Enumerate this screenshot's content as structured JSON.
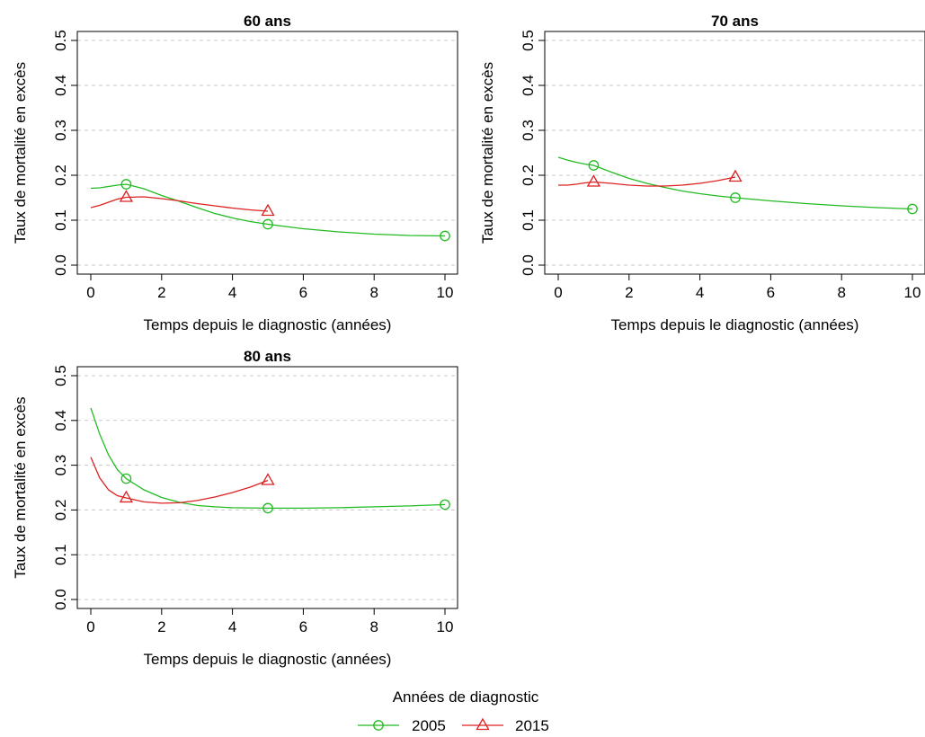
{
  "chart_data": [
    {
      "type": "line",
      "title": "60 ans",
      "xlabel": "Temps depuis le diagnostic (années)",
      "ylabel": "Taux de mortalité en excès",
      "xlim": [
        0,
        10
      ],
      "ylim": [
        0,
        0.5
      ],
      "xticks": [
        0,
        2,
        4,
        6,
        8,
        10
      ],
      "yticks": [
        0.0,
        0.1,
        0.2,
        0.3,
        0.4,
        0.5
      ],
      "ytick_labels": [
        "0.0",
        "0.1",
        "0.2",
        "0.3",
        "0.4",
        "0.5"
      ],
      "grid": "horizontal dashed",
      "series": [
        {
          "name": "2005",
          "color": "#22bb22",
          "marker": "circle",
          "curve": [
            [
              0,
              0.171
            ],
            [
              0.25,
              0.172
            ],
            [
              0.5,
              0.175
            ],
            [
              0.75,
              0.178
            ],
            [
              1,
              0.18
            ],
            [
              1.5,
              0.17
            ],
            [
              2,
              0.155
            ],
            [
              2.5,
              0.142
            ],
            [
              3,
              0.128
            ],
            [
              3.5,
              0.115
            ],
            [
              4,
              0.105
            ],
            [
              4.5,
              0.097
            ],
            [
              5,
              0.091
            ],
            [
              6,
              0.081
            ],
            [
              7,
              0.074
            ],
            [
              8,
              0.069
            ],
            [
              9,
              0.066
            ],
            [
              10,
              0.065
            ]
          ],
          "markers": [
            [
              1,
              0.18
            ],
            [
              5,
              0.091
            ],
            [
              10,
              0.065
            ]
          ]
        },
        {
          "name": "2015",
          "color": "#dd2222",
          "marker": "triangle",
          "curve": [
            [
              0,
              0.128
            ],
            [
              0.25,
              0.133
            ],
            [
              0.5,
              0.14
            ],
            [
              0.75,
              0.147
            ],
            [
              1,
              0.151
            ],
            [
              1.5,
              0.152
            ],
            [
              2,
              0.148
            ],
            [
              2.5,
              0.143
            ],
            [
              3,
              0.137
            ],
            [
              3.5,
              0.132
            ],
            [
              4,
              0.127
            ],
            [
              4.5,
              0.123
            ],
            [
              5,
              0.12
            ]
          ],
          "markers": [
            [
              1,
              0.151
            ],
            [
              5,
              0.12
            ]
          ]
        }
      ]
    },
    {
      "type": "line",
      "title": "70 ans",
      "xlabel": "Temps depuis le diagnostic (années)",
      "ylabel": "Taux de mortalité en excès",
      "xlim": [
        0,
        10
      ],
      "ylim": [
        0,
        0.5
      ],
      "xticks": [
        0,
        2,
        4,
        6,
        8,
        10
      ],
      "yticks": [
        0.0,
        0.1,
        0.2,
        0.3,
        0.4,
        0.5
      ],
      "ytick_labels": [
        "0.0",
        "0.1",
        "0.2",
        "0.3",
        "0.4",
        "0.5"
      ],
      "grid": "horizontal dashed",
      "series": [
        {
          "name": "2005",
          "color": "#22bb22",
          "marker": "circle",
          "curve": [
            [
              0,
              0.24
            ],
            [
              0.25,
              0.234
            ],
            [
              0.5,
              0.229
            ],
            [
              0.75,
              0.225
            ],
            [
              1,
              0.222
            ],
            [
              1.5,
              0.207
            ],
            [
              2,
              0.193
            ],
            [
              2.5,
              0.182
            ],
            [
              3,
              0.173
            ],
            [
              3.5,
              0.165
            ],
            [
              4,
              0.159
            ],
            [
              4.5,
              0.154
            ],
            [
              5,
              0.15
            ],
            [
              6,
              0.143
            ],
            [
              7,
              0.137
            ],
            [
              8,
              0.132
            ],
            [
              9,
              0.128
            ],
            [
              10,
              0.125
            ]
          ],
          "markers": [
            [
              1,
              0.222
            ],
            [
              5,
              0.15
            ],
            [
              10,
              0.125
            ]
          ]
        },
        {
          "name": "2015",
          "color": "#dd2222",
          "marker": "triangle",
          "curve": [
            [
              0,
              0.178
            ],
            [
              0.25,
              0.178
            ],
            [
              0.5,
              0.18
            ],
            [
              0.75,
              0.183
            ],
            [
              1,
              0.185
            ],
            [
              1.5,
              0.182
            ],
            [
              2,
              0.178
            ],
            [
              2.5,
              0.176
            ],
            [
              3,
              0.176
            ],
            [
              3.5,
              0.178
            ],
            [
              4,
              0.182
            ],
            [
              4.5,
              0.188
            ],
            [
              5,
              0.196
            ]
          ],
          "markers": [
            [
              1,
              0.185
            ],
            [
              5,
              0.196
            ]
          ]
        }
      ]
    },
    {
      "type": "line",
      "title": "80 ans",
      "xlabel": "Temps depuis le diagnostic (années)",
      "ylabel": "Taux de mortalité en excès",
      "xlim": [
        0,
        10
      ],
      "ylim": [
        0,
        0.5
      ],
      "xticks": [
        0,
        2,
        4,
        6,
        8,
        10
      ],
      "yticks": [
        0.0,
        0.1,
        0.2,
        0.3,
        0.4,
        0.5
      ],
      "ytick_labels": [
        "0.0",
        "0.1",
        "0.2",
        "0.3",
        "0.4",
        "0.5"
      ],
      "grid": "horizontal dashed",
      "series": [
        {
          "name": "2005",
          "color": "#22bb22",
          "marker": "circle",
          "curve": [
            [
              0,
              0.428
            ],
            [
              0.25,
              0.37
            ],
            [
              0.5,
              0.323
            ],
            [
              0.75,
              0.29
            ],
            [
              1,
              0.27
            ],
            [
              1.5,
              0.245
            ],
            [
              2,
              0.228
            ],
            [
              2.5,
              0.217
            ],
            [
              3,
              0.21
            ],
            [
              3.5,
              0.207
            ],
            [
              4,
              0.205
            ],
            [
              5,
              0.204
            ],
            [
              6,
              0.204
            ],
            [
              7,
              0.205
            ],
            [
              8,
              0.207
            ],
            [
              9,
              0.209
            ],
            [
              10,
              0.212
            ]
          ],
          "markers": [
            [
              1,
              0.27
            ],
            [
              5,
              0.204
            ],
            [
              10,
              0.212
            ]
          ]
        },
        {
          "name": "2015",
          "color": "#dd2222",
          "marker": "triangle",
          "curve": [
            [
              0,
              0.318
            ],
            [
              0.25,
              0.272
            ],
            [
              0.5,
              0.245
            ],
            [
              0.75,
              0.232
            ],
            [
              1,
              0.227
            ],
            [
              1.5,
              0.218
            ],
            [
              2,
              0.215
            ],
            [
              2.5,
              0.216
            ],
            [
              3,
              0.221
            ],
            [
              3.5,
              0.229
            ],
            [
              4,
              0.239
            ],
            [
              4.5,
              0.251
            ],
            [
              5,
              0.266
            ]
          ],
          "markers": [
            [
              1,
              0.227
            ],
            [
              5,
              0.266
            ]
          ]
        }
      ]
    }
  ],
  "legend": {
    "title": "Années de diagnostic",
    "placement": "bottom-center",
    "items": [
      {
        "label": "2005",
        "color": "#22bb22",
        "marker": "circle"
      },
      {
        "label": "2015",
        "color": "#dd2222",
        "marker": "triangle"
      }
    ]
  }
}
